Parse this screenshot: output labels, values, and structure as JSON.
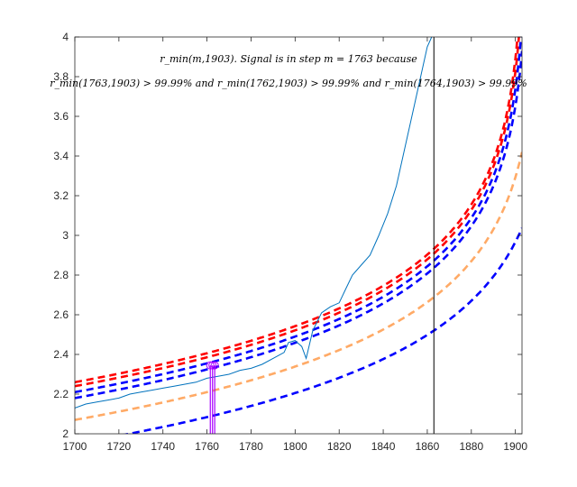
{
  "chart_data": {
    "type": "line",
    "xlim": [
      1700,
      1903
    ],
    "ylim": [
      2,
      4
    ],
    "grid": false,
    "xticks": [
      1700,
      1720,
      1740,
      1760,
      1780,
      1800,
      1820,
      1840,
      1860,
      1880,
      1900
    ],
    "yticks": [
      2,
      2.2,
      2.4,
      2.6,
      2.8,
      3,
      3.2,
      3.4,
      3.6,
      3.8,
      4
    ],
    "annotation_line1": "r_min(m,1903). Signal is in step m = 1763 because",
    "annotation_line2": "r_min(1763,1903) > 99.99% and r_min(1762,1903) > 99.99% and r_min(1764,1903) > 99.99%",
    "vertical_line_x": 1863,
    "signal_step": 1763,
    "signal_markers_x": [
      1761.5,
      1762.5,
      1763.5
    ],
    "signal_markers_top_y": 2.345,
    "colors": {
      "series": "#0072bd",
      "red": "#ff0000",
      "blue": "#0000ff",
      "orange": "#ffaa66",
      "magenta": "#aa00ff",
      "vline": "#000000"
    },
    "series_x": [
      1700,
      1705,
      1710,
      1715,
      1720,
      1725,
      1730,
      1735,
      1740,
      1745,
      1750,
      1755,
      1760,
      1765,
      1770,
      1775,
      1780,
      1785,
      1790,
      1795,
      1797,
      1800,
      1803,
      1805,
      1808,
      1812,
      1816,
      1820,
      1823,
      1826,
      1830,
      1834,
      1838,
      1842,
      1846,
      1850,
      1854,
      1857,
      1860,
      1862
    ],
    "series_y": [
      2.13,
      2.15,
      2.16,
      2.17,
      2.18,
      2.2,
      2.21,
      2.22,
      2.23,
      2.24,
      2.25,
      2.26,
      2.28,
      2.29,
      2.3,
      2.32,
      2.33,
      2.35,
      2.38,
      2.41,
      2.46,
      2.47,
      2.44,
      2.38,
      2.52,
      2.61,
      2.64,
      2.66,
      2.73,
      2.8,
      2.85,
      2.9,
      3.0,
      3.11,
      3.25,
      3.45,
      3.65,
      3.8,
      3.95,
      4.0
    ],
    "dashed_curves": [
      {
        "color": "red",
        "a": 3.5,
        "c": 1904.2
      },
      {
        "color": "red",
        "a": 3.5,
        "c": 1904.7
      },
      {
        "color": "blue",
        "a": 3.5,
        "c": 1905.4
      },
      {
        "color": "blue",
        "a": 3.5,
        "c": 1906.2
      },
      {
        "color": "orange",
        "a": 3.5,
        "c": 1911.5
      },
      {
        "color": "blue",
        "a": 3.5,
        "c": 1919.5
      }
    ]
  }
}
